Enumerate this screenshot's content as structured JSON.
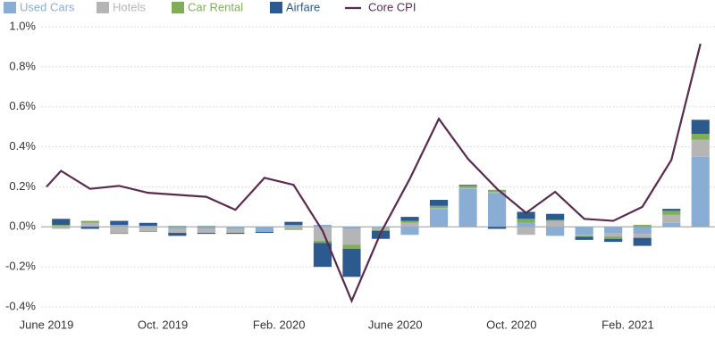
{
  "chart_data": {
    "type": "stacked-bar-line",
    "xlim": [
      0,
      23
    ],
    "xticks": [
      {
        "value": 0,
        "label": "June 2019"
      },
      {
        "value": 4,
        "label": "Oct. 2019"
      },
      {
        "value": 8,
        "label": "Feb. 2020"
      },
      {
        "value": 12,
        "label": "June 2020"
      },
      {
        "value": 16,
        "label": "Oct. 2020"
      },
      {
        "value": 20,
        "label": "Feb. 2021"
      }
    ],
    "ylim": [
      -0.4,
      1.0
    ],
    "yticks": [
      {
        "value": 1.0,
        "label": "1.0%"
      },
      {
        "value": 0.8,
        "label": "0.8%"
      },
      {
        "value": 0.6,
        "label": "0.6%"
      },
      {
        "value": 0.4,
        "label": "0.4%"
      },
      {
        "value": 0.2,
        "label": "0.2%"
      },
      {
        "value": 0,
        "label": "0.0%"
      },
      {
        "value": -0.2,
        "label": "-0.2%"
      },
      {
        "value": -0.4,
        "label": "-0.4%"
      }
    ],
    "grid": true,
    "x": [
      0.5,
      1.5,
      2.5,
      3.5,
      4.5,
      5.5,
      6.5,
      7.5,
      8.5,
      9.5,
      10.5,
      11.5,
      12.5,
      13.5,
      14.5,
      15.5,
      16.5,
      17.5,
      18.5,
      19.5,
      20.5,
      21.5,
      22.5
    ],
    "series": [
      {
        "name": "Used Cars",
        "color": "#8aadd4",
        "values": [
          0.005,
          0.005,
          0.01,
          0.005,
          -0.01,
          -0.01,
          -0.01,
          -0.025,
          0.01,
          0.01,
          -0.01,
          -0.005,
          -0.04,
          0.09,
          0.19,
          0.17,
          0.02,
          -0.045,
          -0.04,
          -0.03,
          -0.035,
          0.02,
          0.35
        ]
      },
      {
        "name": "Hotels",
        "color": "#b5b5b5",
        "values": [
          -0.01,
          0.015,
          -0.03,
          -0.02,
          -0.02,
          -0.02,
          -0.02,
          0.0,
          -0.01,
          -0.07,
          -0.08,
          -0.01,
          0.02,
          0.005,
          0.005,
          0.005,
          -0.04,
          0.03,
          -0.005,
          -0.02,
          -0.02,
          0.04,
          0.085
        ]
      },
      {
        "name": "Car Rental",
        "color": "#7fae5b",
        "values": [
          0.005,
          0.01,
          -0.005,
          -0.005,
          0.005,
          0.005,
          0.0,
          0.0,
          -0.005,
          -0.01,
          -0.02,
          -0.005,
          0.01,
          0.01,
          0.01,
          0.01,
          0.02,
          0.005,
          -0.005,
          -0.01,
          0.01,
          0.02,
          0.03
        ]
      },
      {
        "name": "Airfare",
        "color": "#2d5a8e",
        "values": [
          0.03,
          -0.01,
          0.02,
          0.015,
          -0.015,
          -0.005,
          -0.005,
          -0.005,
          0.015,
          -0.12,
          -0.14,
          -0.04,
          0.02,
          0.03,
          0.005,
          -0.01,
          0.035,
          0.03,
          -0.015,
          -0.015,
          -0.04,
          0.01,
          0.07
        ]
      },
      {
        "name": "Core CPI",
        "color": "#5b2a4f",
        "type": "line",
        "x": [
          0,
          0.5,
          1.5,
          2.5,
          3.5,
          4.5,
          5.5,
          6.5,
          7.5,
          8.5,
          9.5,
          10.5,
          11.5,
          12.5,
          13.5,
          14.5,
          15.5,
          16.5,
          17.5,
          18.5,
          19.5,
          20.5,
          21.5,
          22.5
        ],
        "values": [
          0.2,
          0.28,
          0.19,
          0.205,
          0.17,
          0.16,
          0.15,
          0.085,
          0.245,
          0.21,
          -0.02,
          -0.37,
          -0.03,
          0.24,
          0.54,
          0.34,
          0.19,
          0.07,
          0.175,
          0.04,
          0.03,
          0.1,
          0.335,
          0.915
        ]
      }
    ]
  }
}
